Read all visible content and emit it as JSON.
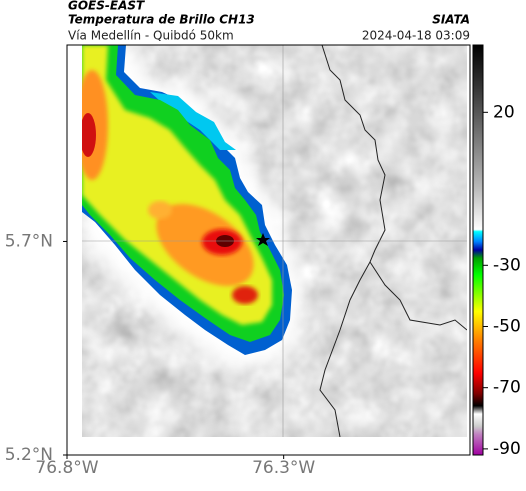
{
  "header": {
    "agency": "GOES-EAST",
    "title": "Temperatura de Brillo CH13",
    "source": "SIATA",
    "subtitle": "Vía Medellín - Quibdó 50km",
    "timestamp": "2024-04-18 03:09"
  },
  "map": {
    "lon_lim": [
      -76.8,
      -75.87
    ],
    "lat_lim": [
      5.2,
      6.16
    ],
    "lon_ticks": [
      {
        "value": -76.8,
        "label": "76.8°W"
      },
      {
        "value": -76.3,
        "label": "76.3°W"
      }
    ],
    "lat_ticks": [
      {
        "value": 5.7,
        "label": "5.7°N"
      },
      {
        "value": 5.2,
        "label": "5.2°N"
      }
    ]
  },
  "colorbar": {
    "lim": [
      -92,
      42
    ],
    "ticks": [
      20,
      -30,
      -50,
      -70,
      -90
    ]
  }
}
